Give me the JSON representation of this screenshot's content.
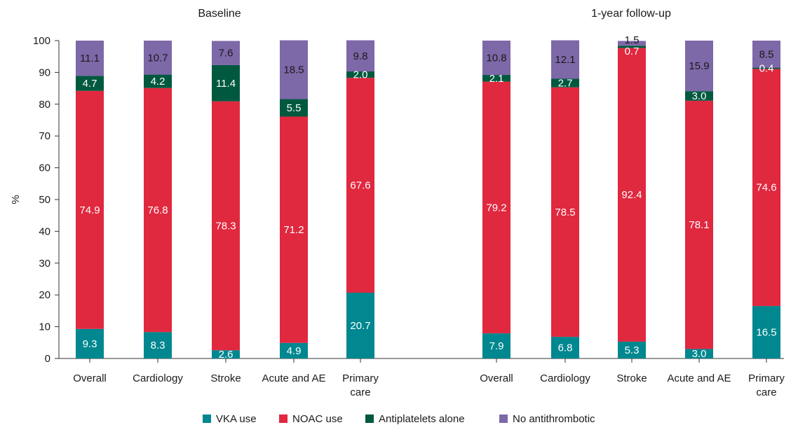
{
  "chart_data": {
    "type": "bar",
    "stacked": true,
    "ylabel": "%",
    "ylim": [
      0,
      100
    ],
    "yticks": [
      0,
      10,
      20,
      30,
      40,
      50,
      60,
      70,
      80,
      90,
      100
    ],
    "grid": false,
    "legend_position": "bottom",
    "legend": [
      {
        "name": "VKA use",
        "color": "#00878f"
      },
      {
        "name": "NOAC use",
        "color": "#e0283f"
      },
      {
        "name": "Antiplatelets alone",
        "color": "#00593f"
      },
      {
        "name": "No antithrombotic",
        "color": "#7d68a8"
      }
    ],
    "panels": [
      {
        "title": "Baseline",
        "categories": [
          [
            "Overall"
          ],
          [
            "Cardiology"
          ],
          [
            "Stroke"
          ],
          [
            "Acute and AE"
          ],
          [
            "Primary",
            "care"
          ]
        ],
        "series": [
          {
            "name": "VKA use",
            "values": [
              9.3,
              8.3,
              2.6,
              4.9,
              20.7
            ],
            "labels": [
              "9.3",
              "8.3",
              "2.6",
              "4.9",
              "20.7"
            ]
          },
          {
            "name": "NOAC use",
            "values": [
              74.9,
              76.8,
              78.3,
              71.2,
              67.6
            ],
            "labels": [
              "74.9",
              "76.8",
              "78.3",
              "71.2",
              "67.6"
            ]
          },
          {
            "name": "Antiplatelets alone",
            "values": [
              4.7,
              4.2,
              11.4,
              5.5,
              2.0
            ],
            "labels": [
              "4.7",
              "4.2",
              "11.4",
              "5.5",
              "2.0"
            ]
          },
          {
            "name": "No antithrombotic",
            "values": [
              11.1,
              10.7,
              7.6,
              18.5,
              9.8
            ],
            "labels": [
              "11.1",
              "10.7",
              "7.6",
              "18.5",
              "9.8"
            ]
          }
        ]
      },
      {
        "title": "1-year follow-up",
        "categories": [
          [
            "Overall"
          ],
          [
            "Cardiology"
          ],
          [
            "Stroke"
          ],
          [
            "Acute and AE"
          ],
          [
            "Primary",
            "care"
          ]
        ],
        "series": [
          {
            "name": "VKA use",
            "values": [
              7.9,
              6.8,
              5.3,
              3.0,
              16.5
            ],
            "labels": [
              "7.9",
              "6.8",
              "5.3",
              "3.0",
              "16.5"
            ]
          },
          {
            "name": "NOAC use",
            "values": [
              79.2,
              78.5,
              92.4,
              78.1,
              74.6
            ],
            "labels": [
              "79.2",
              "78.5",
              "92.4",
              "78.1",
              "74.6"
            ]
          },
          {
            "name": "Antiplatelets alone",
            "values": [
              2.1,
              2.7,
              0.7,
              3.0,
              0.4
            ],
            "labels": [
              "2.1",
              "2.7",
              "0.7",
              "3.0",
              "0.4"
            ]
          },
          {
            "name": "No antithrombotic",
            "values": [
              10.8,
              12.1,
              1.5,
              15.9,
              8.5
            ],
            "labels": [
              "10.8",
              "12.1",
              "1.5",
              "15.9",
              "8.5"
            ]
          }
        ]
      }
    ]
  }
}
